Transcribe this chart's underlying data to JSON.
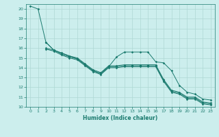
{
  "xlabel": "Humidex (Indice chaleur)",
  "bg_color": "#cceeed",
  "grid_color": "#aed8d4",
  "line_color": "#1a7a6e",
  "xlim": [
    -0.5,
    23.5
  ],
  "ylim": [
    10,
    20.5
  ],
  "xticks": [
    0,
    1,
    2,
    3,
    4,
    5,
    6,
    7,
    8,
    9,
    10,
    11,
    12,
    13,
    14,
    15,
    16,
    17,
    18,
    19,
    20,
    21,
    22,
    23
  ],
  "yticks": [
    10,
    11,
    12,
    13,
    14,
    15,
    16,
    17,
    18,
    19,
    20
  ],
  "line1_x": [
    0,
    1,
    2,
    3,
    4,
    5,
    6,
    7,
    8,
    9,
    10,
    11,
    12,
    13,
    14,
    15,
    16,
    17,
    18,
    19,
    20,
    21,
    22,
    23
  ],
  "line1_y": [
    20.3,
    20.0,
    16.6,
    15.8,
    15.5,
    15.2,
    15.0,
    14.4,
    13.8,
    13.5,
    14.2,
    14.2,
    14.3,
    14.3,
    14.3,
    14.3,
    14.3,
    12.8,
    11.7,
    11.5,
    11.0,
    11.0,
    10.5,
    10.4
  ],
  "line2_x": [
    2,
    3,
    4,
    5,
    6,
    7,
    8,
    9,
    10,
    11,
    12,
    13,
    14,
    15,
    16,
    17,
    18,
    19,
    20,
    21,
    22,
    23
  ],
  "line2_y": [
    16.6,
    15.8,
    15.5,
    15.2,
    14.9,
    14.3,
    13.7,
    13.4,
    14.1,
    15.1,
    15.6,
    15.6,
    15.6,
    15.6,
    14.6,
    14.5,
    13.7,
    12.2,
    11.5,
    11.3,
    10.8,
    10.7
  ],
  "line3_x": [
    2,
    3,
    4,
    5,
    6,
    7,
    8,
    9,
    10,
    11,
    12,
    13,
    14,
    15,
    16,
    17,
    18,
    19,
    20,
    21,
    22,
    23
  ],
  "line3_y": [
    16.0,
    15.8,
    15.4,
    15.1,
    14.9,
    14.3,
    13.7,
    13.4,
    14.1,
    14.1,
    14.2,
    14.2,
    14.2,
    14.2,
    14.2,
    12.7,
    11.6,
    11.4,
    10.9,
    10.9,
    10.4,
    10.3
  ],
  "line4_x": [
    2,
    3,
    4,
    5,
    6,
    7,
    8,
    9,
    10,
    11,
    12,
    13,
    14,
    15,
    16,
    17,
    18,
    19,
    20,
    21,
    22,
    23
  ],
  "line4_y": [
    15.9,
    15.7,
    15.3,
    15.0,
    14.8,
    14.2,
    13.6,
    13.3,
    14.0,
    14.0,
    14.1,
    14.1,
    14.1,
    14.1,
    14.1,
    12.6,
    11.5,
    11.3,
    10.8,
    10.8,
    10.3,
    10.2
  ]
}
